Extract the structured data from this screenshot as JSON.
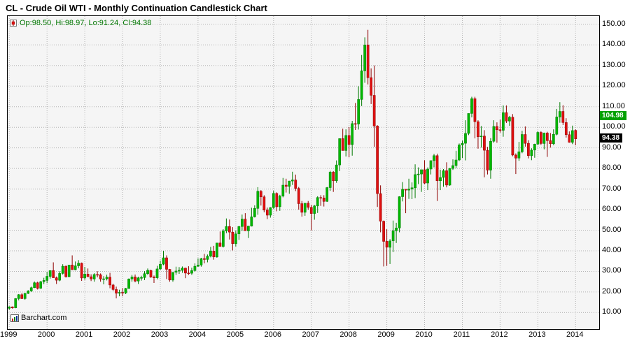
{
  "chart_data": {
    "type": "candlestick",
    "title": "CL - Crude Oil WTI - Monthly Continuation Candlestick Chart",
    "legend_ohlc": "Op:98.50, Hi:98.97, Lo:91.24, Cl:94.38",
    "watermark": "Barchart.com",
    "period": "monthly",
    "grid": true,
    "legend_position": "top-left",
    "ylim": [
      2,
      154
    ],
    "y_ticks": [
      "150.00",
      "140.00",
      "130.00",
      "120.00",
      "110.00",
      "100.00",
      "90.00",
      "80.00",
      "70.00",
      "60.00",
      "50.00",
      "40.00",
      "30.00",
      "20.00",
      "10.00"
    ],
    "x_ticks": [
      "1999",
      "2000",
      "2001",
      "2002",
      "2003",
      "2004",
      "2005",
      "2006",
      "2007",
      "2008",
      "2009",
      "2010",
      "2011",
      "2012",
      "2013",
      "2014"
    ],
    "colors": {
      "up": "#00b800",
      "up_dark": "#007a00",
      "down": "#e01010",
      "down_dark": "#8f0000"
    },
    "price_flags": [
      {
        "label": "104.98",
        "value": 104.98,
        "color": "#00a000"
      },
      {
        "label": "94.38",
        "value": 94.38,
        "color": "#000000"
      }
    ],
    "columns": [
      "month",
      "open",
      "high",
      "low",
      "close"
    ],
    "candles": [
      [
        "1999-01",
        12.1,
        13.1,
        11.4,
        12.8
      ],
      [
        "1999-02",
        12.8,
        13.0,
        11.9,
        12.3
      ],
      [
        "1999-03",
        12.3,
        17.0,
        12.1,
        16.8
      ],
      [
        "1999-04",
        16.8,
        19.0,
        15.9,
        18.7
      ],
      [
        "1999-05",
        18.7,
        19.5,
        16.6,
        16.8
      ],
      [
        "1999-06",
        16.8,
        19.6,
        16.2,
        19.3
      ],
      [
        "1999-07",
        19.3,
        20.9,
        19.0,
        20.5
      ],
      [
        "1999-08",
        20.5,
        22.6,
        20.0,
        22.1
      ],
      [
        "1999-09",
        22.1,
        25.1,
        21.9,
        24.5
      ],
      [
        "1999-10",
        24.5,
        25.0,
        21.2,
        21.8
      ],
      [
        "1999-11",
        21.8,
        25.4,
        21.5,
        25.0
      ],
      [
        "1999-12",
        25.0,
        26.9,
        23.8,
        25.6
      ],
      [
        "2000-01",
        25.6,
        29.8,
        24.3,
        27.6
      ],
      [
        "2000-02",
        27.6,
        30.4,
        26.5,
        30.4
      ],
      [
        "2000-03",
        30.4,
        34.4,
        26.9,
        26.9
      ],
      [
        "2000-04",
        26.9,
        27.5,
        23.9,
        25.7
      ],
      [
        "2000-05",
        25.7,
        30.1,
        25.2,
        29.0
      ],
      [
        "2000-06",
        29.0,
        33.5,
        28.5,
        32.5
      ],
      [
        "2000-07",
        32.5,
        32.9,
        27.0,
        27.4
      ],
      [
        "2000-08",
        27.4,
        33.1,
        27.2,
        33.1
      ],
      [
        "2000-09",
        33.1,
        37.8,
        31.5,
        30.8
      ],
      [
        "2000-10",
        30.8,
        34.8,
        30.5,
        32.7
      ],
      [
        "2000-11",
        32.7,
        35.5,
        31.5,
        34.0
      ],
      [
        "2000-12",
        34.0,
        34.3,
        25.4,
        26.8
      ],
      [
        "2001-01",
        26.8,
        32.2,
        25.9,
        28.7
      ],
      [
        "2001-02",
        28.7,
        31.4,
        27.4,
        27.4
      ],
      [
        "2001-03",
        27.4,
        28.6,
        25.3,
        26.3
      ],
      [
        "2001-04",
        26.3,
        29.1,
        25.0,
        28.5
      ],
      [
        "2001-05",
        28.5,
        30.1,
        27.1,
        28.4
      ],
      [
        "2001-06",
        28.4,
        29.0,
        25.0,
        26.3
      ],
      [
        "2001-07",
        26.3,
        27.7,
        23.7,
        26.4
      ],
      [
        "2001-08",
        26.4,
        28.4,
        25.6,
        27.2
      ],
      [
        "2001-09",
        27.2,
        29.3,
        21.8,
        23.4
      ],
      [
        "2001-10",
        23.4,
        24.0,
        20.5,
        21.2
      ],
      [
        "2001-11",
        21.2,
        22.6,
        16.9,
        19.4
      ],
      [
        "2001-12",
        19.4,
        21.1,
        17.9,
        19.8
      ],
      [
        "2002-01",
        19.8,
        21.9,
        17.9,
        19.5
      ],
      [
        "2002-02",
        19.5,
        22.0,
        19.0,
        21.7
      ],
      [
        "2002-03",
        21.7,
        26.6,
        21.6,
        26.3
      ],
      [
        "2002-04",
        26.3,
        28.3,
        25.0,
        27.3
      ],
      [
        "2002-05",
        27.3,
        28.5,
        24.7,
        25.3
      ],
      [
        "2002-06",
        25.3,
        27.4,
        23.9,
        26.9
      ],
      [
        "2002-07",
        26.9,
        27.9,
        25.5,
        27.0
      ],
      [
        "2002-08",
        27.0,
        30.1,
        25.8,
        28.9
      ],
      [
        "2002-09",
        28.9,
        31.4,
        28.3,
        30.5
      ],
      [
        "2002-10",
        30.5,
        30.8,
        26.9,
        27.2
      ],
      [
        "2002-11",
        27.2,
        28.0,
        24.4,
        26.9
      ],
      [
        "2002-12",
        26.9,
        32.7,
        26.2,
        31.2
      ],
      [
        "2003-01",
        31.2,
        35.2,
        30.6,
        33.5
      ],
      [
        "2003-02",
        33.5,
        40.0,
        33.0,
        36.6
      ],
      [
        "2003-03",
        36.6,
        37.8,
        26.3,
        31.0
      ],
      [
        "2003-04",
        31.0,
        31.2,
        25.0,
        25.8
      ],
      [
        "2003-05",
        25.8,
        29.6,
        25.0,
        29.6
      ],
      [
        "2003-06",
        29.6,
        32.3,
        28.3,
        30.2
      ],
      [
        "2003-07",
        30.2,
        32.1,
        28.8,
        30.5
      ],
      [
        "2003-08",
        30.5,
        32.4,
        29.3,
        31.6
      ],
      [
        "2003-09",
        31.6,
        31.8,
        26.7,
        29.2
      ],
      [
        "2003-10",
        29.2,
        32.5,
        28.3,
        29.1
      ],
      [
        "2003-11",
        29.1,
        31.8,
        28.3,
        30.4
      ],
      [
        "2003-12",
        30.4,
        33.9,
        29.8,
        32.5
      ],
      [
        "2004-01",
        32.5,
        36.3,
        32.2,
        33.1
      ],
      [
        "2004-02",
        33.1,
        36.6,
        32.3,
        36.2
      ],
      [
        "2004-03",
        36.2,
        38.5,
        33.9,
        35.8
      ],
      [
        "2004-04",
        35.8,
        38.2,
        34.4,
        37.4
      ],
      [
        "2004-05",
        37.4,
        41.9,
        36.8,
        39.9
      ],
      [
        "2004-06",
        39.9,
        42.4,
        35.7,
        37.0
      ],
      [
        "2004-07",
        37.0,
        43.9,
        36.6,
        43.8
      ],
      [
        "2004-08",
        43.8,
        49.4,
        42.1,
        42.1
      ],
      [
        "2004-09",
        42.1,
        50.5,
        41.6,
        49.6
      ],
      [
        "2004-10",
        49.6,
        55.7,
        48.5,
        51.8
      ],
      [
        "2004-11",
        51.8,
        55.2,
        45.5,
        49.1
      ],
      [
        "2004-12",
        49.1,
        51.5,
        40.2,
        43.5
      ],
      [
        "2005-01",
        43.5,
        49.8,
        42.1,
        48.2
      ],
      [
        "2005-02",
        48.2,
        52.1,
        45.3,
        51.8
      ],
      [
        "2005-03",
        51.8,
        57.6,
        49.7,
        55.4
      ],
      [
        "2005-04",
        55.4,
        58.3,
        49.9,
        49.7
      ],
      [
        "2005-05",
        49.7,
        52.1,
        46.2,
        52.0
      ],
      [
        "2005-06",
        52.0,
        60.9,
        51.8,
        56.5
      ],
      [
        "2005-07",
        56.5,
        62.1,
        56.2,
        60.6
      ],
      [
        "2005-08",
        60.6,
        70.9,
        57.5,
        68.9
      ],
      [
        "2005-09",
        68.9,
        69.5,
        62.0,
        66.2
      ],
      [
        "2005-10",
        66.2,
        67.0,
        58.7,
        59.8
      ],
      [
        "2005-11",
        59.8,
        61.0,
        55.4,
        57.3
      ],
      [
        "2005-12",
        57.3,
        61.2,
        56.1,
        61.0
      ],
      [
        "2006-01",
        61.0,
        69.2,
        60.4,
        67.9
      ],
      [
        "2006-02",
        67.9,
        68.4,
        59.2,
        61.4
      ],
      [
        "2006-03",
        61.4,
        67.2,
        59.4,
        66.6
      ],
      [
        "2006-04",
        66.6,
        75.4,
        66.0,
        71.9
      ],
      [
        "2006-05",
        71.9,
        75.0,
        68.3,
        71.3
      ],
      [
        "2006-06",
        71.3,
        74.0,
        67.7,
        73.9
      ],
      [
        "2006-07",
        73.9,
        78.4,
        72.0,
        74.4
      ],
      [
        "2006-08",
        74.4,
        77.0,
        69.0,
        70.3
      ],
      [
        "2006-09",
        70.3,
        71.0,
        60.0,
        62.9
      ],
      [
        "2006-10",
        62.9,
        64.2,
        56.6,
        58.7
      ],
      [
        "2006-11",
        58.7,
        63.1,
        57.0,
        63.1
      ],
      [
        "2006-12",
        63.1,
        64.2,
        60.0,
        61.1
      ],
      [
        "2007-01",
        61.1,
        62.3,
        49.9,
        58.1
      ],
      [
        "2007-02",
        58.1,
        62.3,
        55.1,
        61.8
      ],
      [
        "2007-03",
        61.8,
        66.5,
        58.4,
        65.9
      ],
      [
        "2007-04",
        65.9,
        67.0,
        61.8,
        65.7
      ],
      [
        "2007-05",
        65.7,
        67.0,
        61.5,
        64.0
      ],
      [
        "2007-06",
        64.0,
        71.0,
        63.7,
        70.7
      ],
      [
        "2007-07",
        70.7,
        78.8,
        69.1,
        78.2
      ],
      [
        "2007-08",
        78.2,
        78.7,
        68.6,
        74.0
      ],
      [
        "2007-09",
        74.0,
        83.9,
        73.0,
        81.7
      ],
      [
        "2007-10",
        81.7,
        94.6,
        78.7,
        94.5
      ],
      [
        "2007-11",
        94.5,
        99.3,
        89.0,
        88.7
      ],
      [
        "2007-12",
        88.7,
        99.0,
        85.8,
        96.0
      ],
      [
        "2008-01",
        96.0,
        100.1,
        85.4,
        91.6
      ],
      [
        "2008-02",
        91.6,
        103.1,
        86.2,
        101.8
      ],
      [
        "2008-03",
        101.8,
        111.8,
        98.7,
        101.6
      ],
      [
        "2008-04",
        101.6,
        119.9,
        98.9,
        113.5
      ],
      [
        "2008-05",
        113.5,
        135.1,
        110.3,
        127.4
      ],
      [
        "2008-06",
        127.4,
        143.7,
        121.6,
        140.0
      ],
      [
        "2008-07",
        140.0,
        147.3,
        120.8,
        124.1
      ],
      [
        "2008-08",
        124.1,
        128.6,
        111.3,
        115.5
      ],
      [
        "2008-09",
        115.5,
        130.0,
        90.5,
        100.6
      ],
      [
        "2008-10",
        100.6,
        101.0,
        61.3,
        67.8
      ],
      [
        "2008-11",
        67.8,
        71.8,
        49.0,
        54.4
      ],
      [
        "2008-12",
        54.4,
        54.7,
        32.4,
        44.6
      ],
      [
        "2009-01",
        44.6,
        50.5,
        32.7,
        41.7
      ],
      [
        "2009-02",
        41.7,
        45.7,
        33.6,
        44.8
      ],
      [
        "2009-03",
        44.8,
        54.7,
        39.4,
        49.7
      ],
      [
        "2009-04",
        49.7,
        53.6,
        43.8,
        51.1
      ],
      [
        "2009-05",
        51.1,
        66.5,
        49.0,
        66.3
      ],
      [
        "2009-06",
        66.3,
        73.4,
        64.0,
        69.9
      ],
      [
        "2009-07",
        69.9,
        70.0,
        58.3,
        69.5
      ],
      [
        "2009-08",
        69.5,
        75.0,
        65.2,
        70.0
      ],
      [
        "2009-09",
        70.0,
        73.2,
        65.1,
        70.6
      ],
      [
        "2009-10",
        70.6,
        82.0,
        65.6,
        77.0
      ],
      [
        "2009-11",
        77.0,
        80.5,
        72.4,
        77.3
      ],
      [
        "2009-12",
        77.3,
        79.0,
        68.6,
        79.4
      ],
      [
        "2010-01",
        79.4,
        84.0,
        72.4,
        72.9
      ],
      [
        "2010-02",
        72.9,
        80.5,
        69.5,
        79.7
      ],
      [
        "2010-03",
        79.7,
        83.8,
        77.1,
        83.8
      ],
      [
        "2010-04",
        83.8,
        87.1,
        80.5,
        86.2
      ],
      [
        "2010-05",
        86.2,
        87.2,
        64.2,
        74.0
      ],
      [
        "2010-06",
        74.0,
        79.4,
        69.5,
        75.6
      ],
      [
        "2010-07",
        75.6,
        79.7,
        71.1,
        78.9
      ],
      [
        "2010-08",
        78.9,
        83.0,
        70.8,
        71.9
      ],
      [
        "2010-09",
        71.9,
        80.2,
        71.6,
        80.0
      ],
      [
        "2010-10",
        80.0,
        84.4,
        79.3,
        81.4
      ],
      [
        "2010-11",
        81.4,
        88.6,
        80.1,
        84.1
      ],
      [
        "2010-12",
        84.1,
        92.1,
        83.6,
        91.4
      ],
      [
        "2011-01",
        91.4,
        93.5,
        85.1,
        92.2
      ],
      [
        "2011-02",
        92.2,
        103.4,
        83.9,
        97.0
      ],
      [
        "2011-03",
        97.0,
        106.7,
        96.2,
        106.7
      ],
      [
        "2011-04",
        106.7,
        114.8,
        104.8,
        113.9
      ],
      [
        "2011-05",
        113.9,
        114.8,
        94.6,
        102.7
      ],
      [
        "2011-06",
        102.7,
        103.4,
        89.6,
        95.4
      ],
      [
        "2011-07",
        95.4,
        100.6,
        90.1,
        95.7
      ],
      [
        "2011-08",
        95.7,
        98.6,
        75.7,
        88.8
      ],
      [
        "2011-09",
        88.8,
        90.5,
        77.1,
        79.2
      ],
      [
        "2011-10",
        79.2,
        94.7,
        75.0,
        93.2
      ],
      [
        "2011-11",
        93.2,
        103.4,
        92.5,
        100.4
      ],
      [
        "2011-12",
        100.4,
        102.4,
        92.5,
        98.8
      ],
      [
        "2012-01",
        98.8,
        103.7,
        97.4,
        98.5
      ],
      [
        "2012-02",
        98.5,
        110.6,
        95.4,
        107.1
      ],
      [
        "2012-03",
        107.1,
        110.6,
        102.1,
        103.0
      ],
      [
        "2012-04",
        103.0,
        105.5,
        100.7,
        104.9
      ],
      [
        "2012-05",
        104.9,
        106.4,
        85.9,
        86.5
      ],
      [
        "2012-06",
        86.5,
        87.3,
        77.3,
        85.0
      ],
      [
        "2012-07",
        85.0,
        92.9,
        83.7,
        88.1
      ],
      [
        "2012-08",
        88.1,
        98.3,
        87.4,
        96.5
      ],
      [
        "2012-09",
        96.5,
        100.4,
        90.6,
        92.2
      ],
      [
        "2012-10",
        92.2,
        93.7,
        84.9,
        86.2
      ],
      [
        "2012-11",
        86.2,
        89.8,
        84.0,
        88.9
      ],
      [
        "2012-12",
        88.9,
        92.0,
        85.2,
        91.8
      ],
      [
        "2013-01",
        91.8,
        98.2,
        91.3,
        97.5
      ],
      [
        "2013-02",
        97.5,
        98.1,
        91.4,
        92.1
      ],
      [
        "2013-03",
        92.1,
        97.4,
        89.3,
        97.2
      ],
      [
        "2013-04",
        97.2,
        97.8,
        85.6,
        93.5
      ],
      [
        "2013-05",
        93.5,
        97.2,
        90.1,
        92.0
      ],
      [
        "2013-06",
        92.0,
        99.0,
        91.3,
        96.6
      ],
      [
        "2013-07",
        96.6,
        108.9,
        96.1,
        105.0
      ],
      [
        "2013-08",
        105.0,
        112.2,
        102.2,
        107.7
      ],
      [
        "2013-09",
        107.7,
        110.7,
        101.1,
        102.3
      ],
      [
        "2013-10",
        102.3,
        104.4,
        95.0,
        96.4
      ],
      [
        "2013-11",
        96.4,
        98.0,
        92.5,
        92.7
      ],
      [
        "2013-12",
        92.7,
        100.8,
        91.8,
        98.4
      ],
      [
        "2014-01",
        98.5,
        98.97,
        91.24,
        94.38
      ]
    ]
  }
}
